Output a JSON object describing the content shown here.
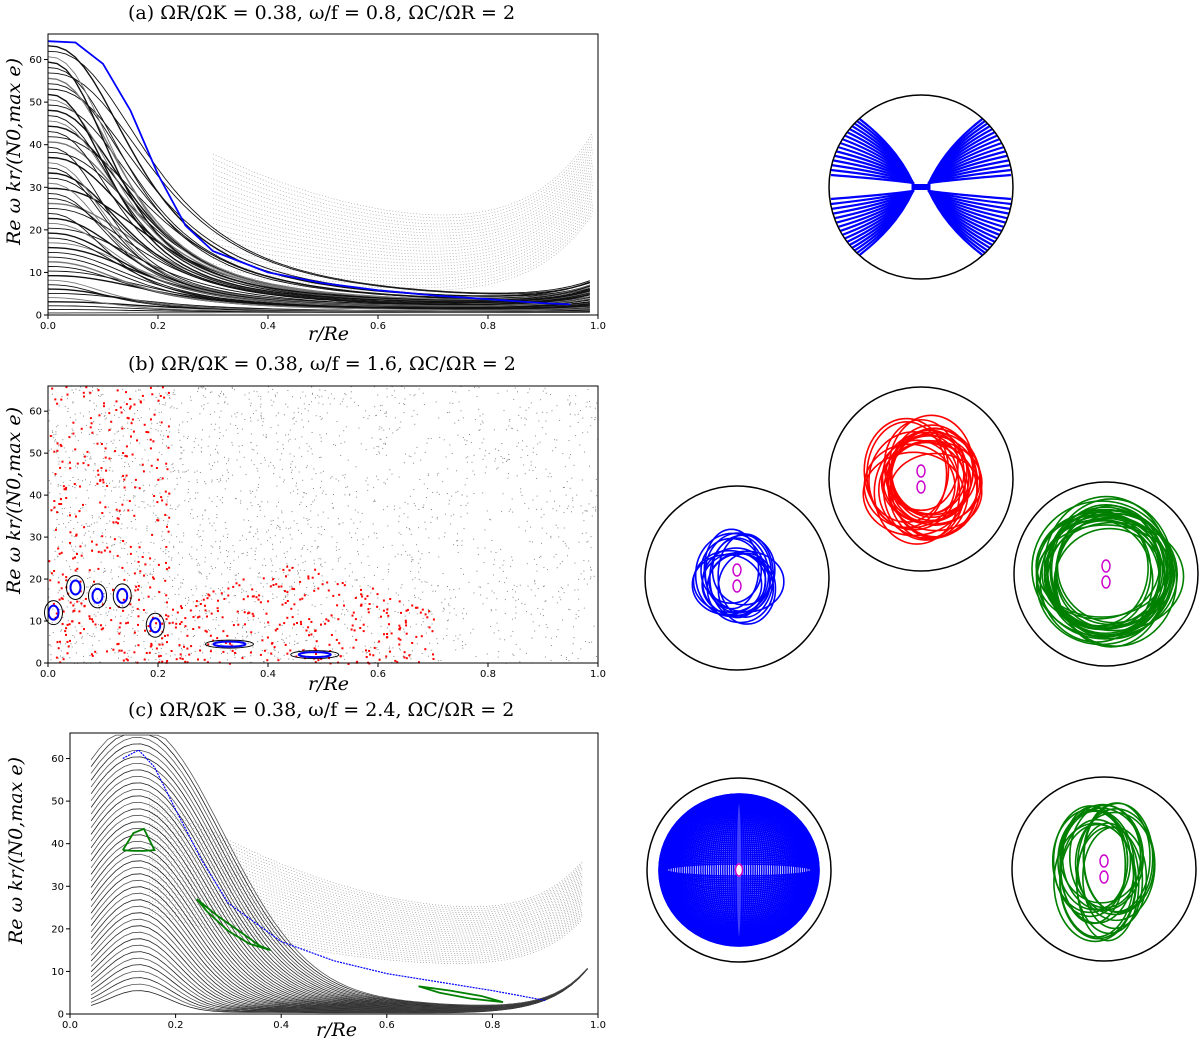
{
  "chart_data": [
    {
      "type": "scatter",
      "panel": "(a)",
      "title": "(a)   ΩR/ΩK = 0.38,  ω/f = 0.8,  ΩC/ΩR = 2",
      "xlabel": "r/Re",
      "ylabel": "Re ω kr/(N0,max e)",
      "xlim": [
        0,
        1
      ],
      "ylim": [
        0,
        66
      ],
      "xticks": [
        "0.0",
        "0.2",
        "0.4",
        "0.6",
        "0.8",
        "1.0"
      ],
      "yticks": [
        "0",
        "10",
        "20",
        "30",
        "40",
        "50",
        "60"
      ],
      "highlight_series": [
        {
          "name": "",
          "color": "#0000ff",
          "x": [
            0.0,
            0.05,
            0.1,
            0.15,
            0.2,
            0.25,
            0.3,
            0.4,
            0.5,
            0.6,
            0.7,
            0.8,
            0.9,
            0.95
          ],
          "y": [
            64.3,
            64.0,
            59.0,
            48.0,
            33.0,
            21.0,
            15.0,
            10.0,
            7.5,
            5.8,
            4.6,
            3.7,
            2.8,
            2.5
          ]
        }
      ],
      "orbit_insets": [
        {
          "color": "#0000ff",
          "shape": "bowtie"
        }
      ]
    },
    {
      "type": "scatter",
      "panel": "(b)",
      "title": "(b)   ΩR/ΩK = 0.38,  ω/f = 1.6,  ΩC/ΩR = 2",
      "xlabel": "r/Re",
      "ylabel": "Re ω kr/(N0,max e)",
      "xlim": [
        0,
        1
      ],
      "ylim": [
        0,
        66
      ],
      "xticks": [
        "0.0",
        "0.2",
        "0.4",
        "0.6",
        "0.8",
        "1.0"
      ],
      "yticks": [
        "0",
        "10",
        "20",
        "30",
        "40",
        "50",
        "60"
      ],
      "islands": [
        {
          "color": "#0000ff",
          "x": 0.01,
          "y": 12
        },
        {
          "color": "#0000ff",
          "x": 0.05,
          "y": 18
        },
        {
          "color": "#0000ff",
          "x": 0.09,
          "y": 16
        },
        {
          "color": "#0000ff",
          "x": 0.135,
          "y": 16
        },
        {
          "color": "#0000ff",
          "x": 0.195,
          "y": 9
        },
        {
          "color": "#0000ff",
          "x": 0.33,
          "y": 4.5
        },
        {
          "color": "#0000ff",
          "x": 0.485,
          "y": 2
        }
      ],
      "orbit_insets": [
        {
          "color": "#0000ff",
          "shape": "rosette"
        },
        {
          "color": "#ff0000",
          "shape": "rosette"
        },
        {
          "color": "#008000",
          "shape": "rosette"
        }
      ]
    },
    {
      "type": "scatter",
      "panel": "(c)",
      "title": "(c)   ΩR/ΩK = 0.38,  ω/f = 2.4,  ΩC/ΩR = 2",
      "xlabel": "r/Re",
      "ylabel": "Re ω kr/(N0,max e)",
      "xlim": [
        0,
        1
      ],
      "ylim": [
        0,
        66
      ],
      "xticks": [
        "0.0",
        "0.2",
        "0.4",
        "0.6",
        "0.8",
        "1.0"
      ],
      "yticks": [
        "0",
        "10",
        "20",
        "30",
        "40",
        "50",
        "60"
      ],
      "highlight_series": [
        {
          "name": "",
          "color": "#0000ff",
          "x": [
            0.1,
            0.13,
            0.16,
            0.2,
            0.25,
            0.3,
            0.4,
            0.5,
            0.6,
            0.7,
            0.8,
            0.9
          ],
          "y": [
            60.0,
            62.0,
            58.0,
            48.0,
            36.0,
            26.0,
            17.0,
            12.5,
            9.5,
            7.5,
            5.5,
            3.2
          ]
        }
      ],
      "green_curves": [
        {
          "x": [
            0.1,
            0.12,
            0.14,
            0.16,
            0.14,
            0.12,
            0.1
          ],
          "y": [
            38.5,
            42.5,
            43.5,
            38.5,
            38.3,
            38.3,
            38.5
          ]
        },
        {
          "x": [
            0.24,
            0.28,
            0.32,
            0.36,
            0.38,
            0.34,
            0.3,
            0.26,
            0.24
          ],
          "y": [
            27,
            23,
            19.5,
            16,
            15,
            16.5,
            19.5,
            24,
            27
          ]
        },
        {
          "x": [
            0.66,
            0.72,
            0.78,
            0.82,
            0.76,
            0.7,
            0.66
          ],
          "y": [
            6.5,
            5.5,
            4.2,
            2.8,
            3.6,
            5.0,
            6.5
          ]
        }
      ],
      "orbit_insets": [
        {
          "color": "#0000ff",
          "shape": "filled-ellipse"
        },
        {
          "color": "#008000",
          "shape": "rosette"
        }
      ]
    }
  ]
}
